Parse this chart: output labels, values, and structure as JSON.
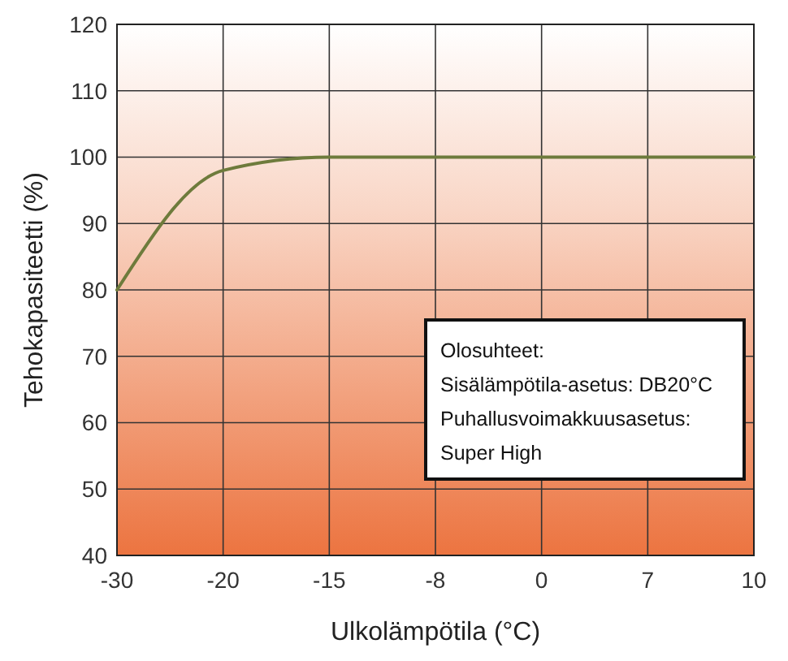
{
  "chart_data": {
    "type": "line",
    "xlabel": "Ulkolämpötila (°C)",
    "ylabel": "Tehokapasiteetti (%)",
    "categories": [
      "-30",
      "-20",
      "-15",
      "-8",
      "0",
      "7",
      "10"
    ],
    "series": [
      {
        "color": "#6e7b3c",
        "values": [
          80,
          98,
          100,
          100,
          100,
          100,
          100
        ]
      }
    ],
    "ylim": [
      40,
      120
    ],
    "yticks": [
      40,
      50,
      60,
      70,
      80,
      90,
      100,
      110,
      120
    ],
    "grid": true,
    "marker": "none",
    "line_style": "solid",
    "annotations": [
      "Olosuhteet:",
      "Sisälämpötila-asetus: DB20°C",
      "Puhallusvoimakkuusasetus:",
      "Super High"
    ]
  }
}
